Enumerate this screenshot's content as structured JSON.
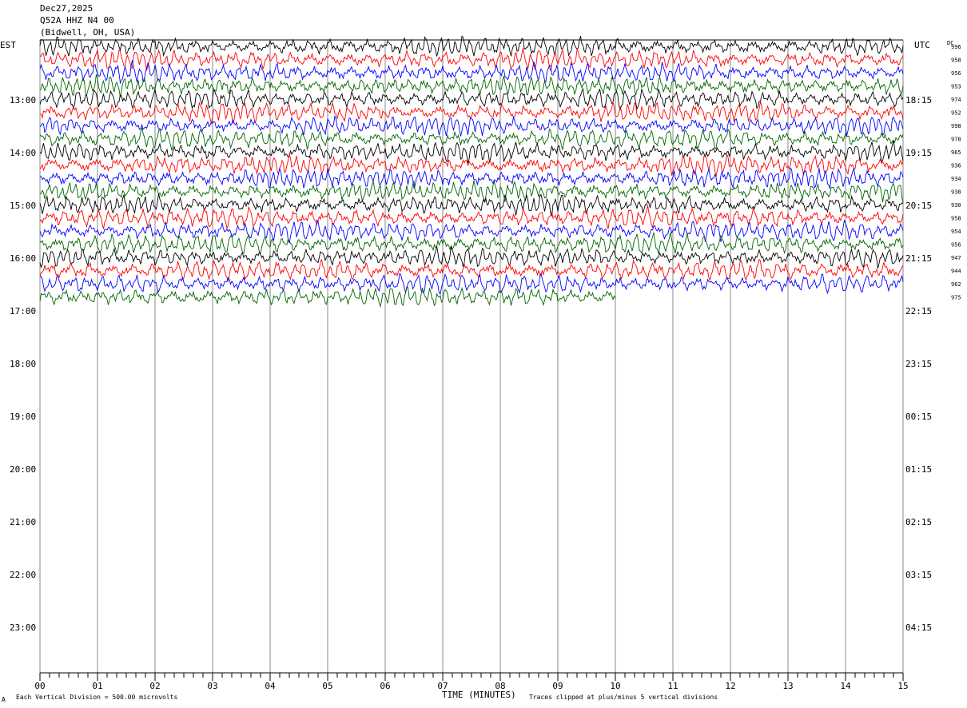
{
  "header": {
    "date": "Dec27,2025",
    "station": "Q52A HHZ N4 00",
    "location": "(Bidwell, OH, USA)"
  },
  "left_timezone": "EST",
  "right_timezone": "UTC",
  "dc_header": "DC",
  "footer": {
    "scale_note": "Each Vertical Division =  500.00 microvolts",
    "xlabel": "TIME (MINUTES)",
    "clip_note": "Traces clipped at plus/minus 5 vertical divisions",
    "corner_mark": "A"
  },
  "chart_data": {
    "type": "line",
    "title": "Q52A HHZ N4 00",
    "xlabel": "TIME (MINUTES)",
    "xlim": [
      0,
      15
    ],
    "x_ticks": [
      "00",
      "01",
      "02",
      "03",
      "04",
      "05",
      "06",
      "07",
      "08",
      "09",
      "10",
      "11",
      "12",
      "13",
      "14",
      "15"
    ],
    "left_hour_labels": [
      "13:00",
      "14:00",
      "15:00",
      "16:00",
      "17:00",
      "18:00",
      "19:00",
      "20:00",
      "21:00",
      "22:00",
      "23:00"
    ],
    "right_hour_labels": [
      "18:15",
      "19:15",
      "20:15",
      "21:15",
      "22:15",
      "23:15",
      "00:15",
      "01:15",
      "02:15",
      "03:15",
      "04:15"
    ],
    "trace_colors": [
      "#000000",
      "#ff0000",
      "#0000ff",
      "#006400"
    ],
    "dc_offsets": [
      "996",
      "958",
      "956",
      "953",
      "974",
      "952",
      "998",
      "978",
      "965",
      "936",
      "934",
      "938",
      "930",
      "958",
      "954",
      "956",
      "947",
      "944",
      "962",
      "975"
    ],
    "trace_count": 20,
    "last_trace_end_minute": 10,
    "grid": true
  }
}
